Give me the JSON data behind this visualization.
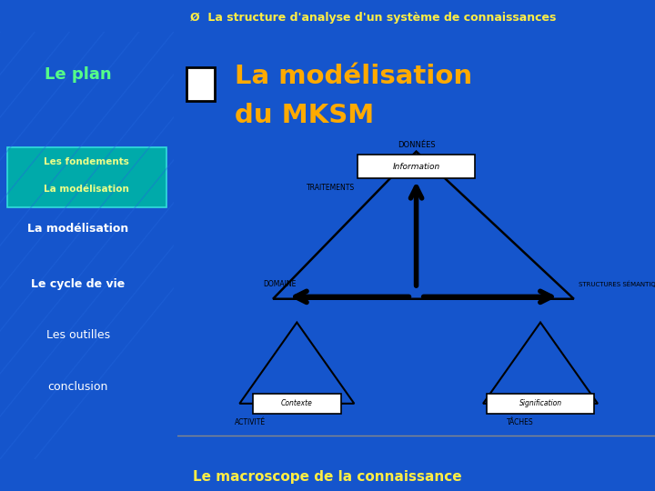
{
  "title_bar": "La structure d'analyse d'un système de connaissances",
  "footer": "Le macroscope de la connaissance",
  "slide_title_line1": "La modélisation",
  "slide_title_line2": "du MKSM",
  "left_panel_bg": "#1555cc",
  "left_panel_title": "Le plan",
  "left_panel_items_highlighted": [
    "Les fondements",
    "La modélisation"
  ],
  "left_panel_items": [
    "La modélisation",
    "Le cycle de vie",
    "Les outilles",
    "conclusion"
  ],
  "highlight_bg": "#00aaaa",
  "title_bar_bg": "#0033aa",
  "title_bar_text_color": "#ffee44",
  "footer_bg": "#0033aa",
  "footer_text_color": "#ffee44",
  "main_bg": "#ffffff",
  "checkbox_color": "#ffffff",
  "slide_title_color": "#ffaa00",
  "arrow_color": "#000000",
  "diagram_line_color": "#000000"
}
